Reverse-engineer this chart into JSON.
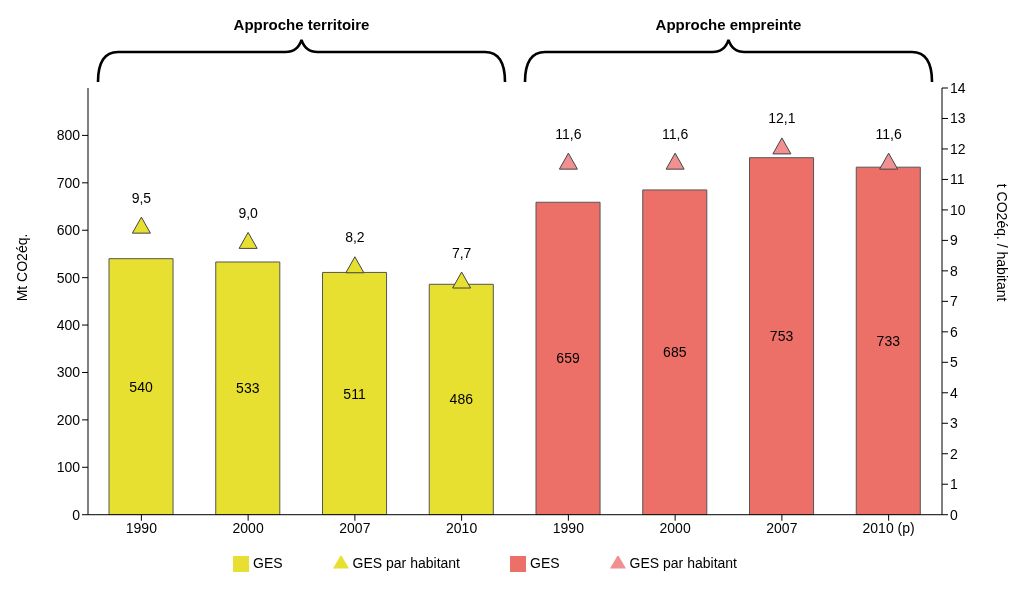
{
  "chart_data": {
    "type": "bar",
    "categories": [
      "1990",
      "2000",
      "2007",
      "2010",
      "1990",
      "2000",
      "2007",
      "2010 (p)"
    ],
    "ylabel": "Mt CO2éq.",
    "y2label": "t CO2éq. / habitant",
    "ylim": [
      0,
      900
    ],
    "yticks": [
      0,
      100,
      200,
      300,
      400,
      500,
      600,
      700,
      800
    ],
    "y2lim": [
      0,
      14
    ],
    "y2ticks": [
      0,
      1,
      2,
      3,
      4,
      5,
      6,
      7,
      8,
      9,
      10,
      11,
      12,
      13,
      14
    ],
    "annotations": [
      "Approche territoire",
      "Approche empreinte"
    ],
    "series": [
      {
        "name": "GES",
        "color": "#e8e030",
        "values": [
          540,
          533,
          511,
          486,
          null,
          null,
          null,
          null
        ],
        "data_labels": true
      },
      {
        "type": "scatter",
        "name": "GES par habitant",
        "color": "#e8e030",
        "axis": "y2",
        "marker": "triangle",
        "values": [
          9.5,
          9.0,
          8.2,
          7.7,
          null,
          null,
          null,
          null
        ],
        "value_labels": [
          "9,5",
          "9,0",
          "8,2",
          "7,7",
          null,
          null,
          null,
          null
        ]
      },
      {
        "name": "GES",
        "color": "#ec7068",
        "values": [
          null,
          null,
          null,
          null,
          659,
          685,
          753,
          733
        ],
        "data_labels": true
      },
      {
        "type": "scatter",
        "name": "GES par habitant",
        "color": "#f09090",
        "axis": "y2",
        "marker": "triangle",
        "values": [
          null,
          null,
          null,
          null,
          11.6,
          11.6,
          12.1,
          11.6
        ],
        "value_labels": [
          null,
          null,
          null,
          null,
          "11,6",
          "11,6",
          "12,1",
          "11,6"
        ]
      }
    ],
    "stacked": true,
    "grid": false,
    "legend": "bottom"
  }
}
